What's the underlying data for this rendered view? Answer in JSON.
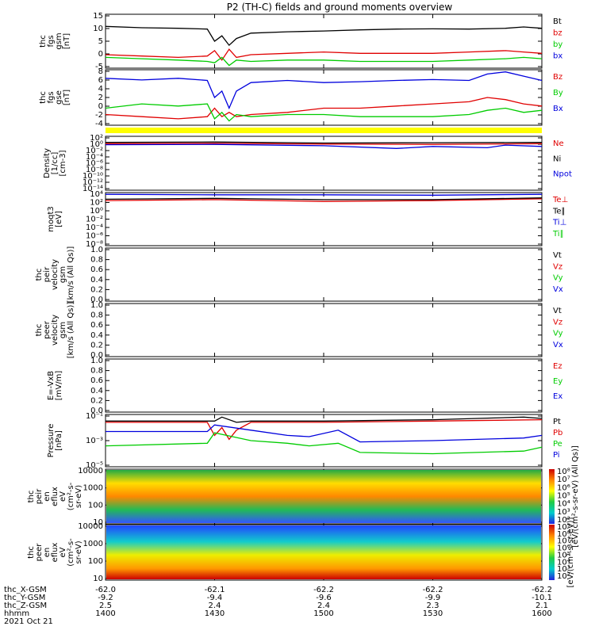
{
  "title": "P2 (TH-C) fields and ground moments overview",
  "colors": {
    "black": "#000000",
    "red": "#e00000",
    "green": "#00cc00",
    "blue": "#0000dd",
    "yellow": "#ffff00"
  },
  "chart_data": [
    {
      "id": "fgs_gsm",
      "type": "line",
      "ylabel": [
        "thc",
        "fgs",
        "gsm",
        "[nT]"
      ],
      "ylim": [
        -5,
        15
      ],
      "yticks": [
        "15",
        "10",
        "5",
        "0",
        "-5"
      ],
      "legend": [
        "Bt",
        "bz",
        "by",
        "bx"
      ],
      "legend_colors": [
        "black",
        "red",
        "green",
        "blue"
      ],
      "series": [
        {
          "name": "Bt",
          "color": "black",
          "x": [
            1400,
            1410,
            1420,
            1428,
            1430,
            1432,
            1434,
            1436,
            1440,
            1450,
            1500,
            1510,
            1520,
            1530,
            1540,
            1550,
            1555,
            1600
          ],
          "y": [
            10.5,
            10,
            9.8,
            9.5,
            5,
            7,
            3.5,
            6,
            8,
            8.5,
            8.8,
            9.2,
            9.5,
            9.6,
            9.5,
            9.8,
            10.3,
            9.8
          ]
        },
        {
          "name": "bz",
          "color": "red",
          "x": [
            1400,
            1410,
            1420,
            1428,
            1430,
            1432,
            1434,
            1436,
            1440,
            1450,
            1500,
            1510,
            1520,
            1530,
            1540,
            1550,
            1555,
            1600
          ],
          "y": [
            0,
            -0.5,
            -1,
            -0.5,
            1.5,
            -2,
            2,
            -1,
            0,
            0.5,
            1,
            0.5,
            0.5,
            0.5,
            1,
            1.5,
            1,
            0.5
          ]
        },
        {
          "name": "by",
          "color": "green",
          "x": [
            1400,
            1410,
            1420,
            1428,
            1430,
            1432,
            1434,
            1436,
            1440,
            1450,
            1500,
            1510,
            1520,
            1530,
            1540,
            1550,
            1555,
            1600
          ],
          "y": [
            -1,
            -1.5,
            -2,
            -2.5,
            -3,
            -1,
            -4,
            -2,
            -2.5,
            -2,
            -2,
            -2.5,
            -2.5,
            -2.5,
            -2,
            -1.5,
            -1,
            -1.5
          ]
        }
      ]
    },
    {
      "id": "fgs_gse",
      "type": "line",
      "ylabel": [
        "thc",
        "fgs",
        "gse",
        "[nT]"
      ],
      "ylim": [
        -5,
        8
      ],
      "yticks": [
        "8",
        "6",
        "4",
        "2",
        "0",
        "-2",
        "-4"
      ],
      "legend": [
        "Bz",
        "By",
        "Bx"
      ],
      "legend_colors": [
        "red",
        "green",
        "blue"
      ],
      "series": [
        {
          "name": "Bz",
          "color": "blue",
          "x": [
            1400,
            1410,
            1420,
            1428,
            1430,
            1432,
            1434,
            1436,
            1440,
            1450,
            1500,
            1510,
            1520,
            1530,
            1540,
            1545,
            1550,
            1555,
            1600
          ],
          "y": [
            6,
            5.6,
            6,
            5.5,
            1.5,
            3,
            -1,
            3,
            5,
            5.5,
            5,
            5.2,
            5.5,
            5.7,
            5.5,
            7,
            7.5,
            6.5,
            5.5
          ]
        },
        {
          "name": "By",
          "color": "red",
          "x": [
            1400,
            1410,
            1420,
            1428,
            1430,
            1432,
            1434,
            1436,
            1440,
            1450,
            1500,
            1510,
            1520,
            1530,
            1540,
            1545,
            1550,
            1555,
            1600
          ],
          "y": [
            -2.5,
            -3,
            -3.5,
            -3,
            -1,
            -3,
            -2,
            -3,
            -2.5,
            -2,
            -1,
            -1,
            -0.5,
            0,
            0.5,
            1.5,
            1,
            0,
            -0.5
          ]
        },
        {
          "name": "Bx",
          "color": "green",
          "x": [
            1400,
            1410,
            1420,
            1428,
            1430,
            1432,
            1434,
            1436,
            1440,
            1450,
            1500,
            1510,
            1520,
            1530,
            1540,
            1545,
            1550,
            1555,
            1600
          ],
          "y": [
            -1,
            0,
            -0.5,
            0,
            -3.5,
            -2,
            -4,
            -2.5,
            -3,
            -2.5,
            -2.5,
            -3,
            -3,
            -3,
            -2.5,
            -1.5,
            -1,
            -2,
            -1.5
          ]
        }
      ]
    },
    {
      "id": "density",
      "type": "line",
      "log": true,
      "ylabel": [
        "Density",
        "[1/cc]",
        "[cm-3]"
      ],
      "ylim_exp": [
        -14,
        2
      ],
      "yticks": [
        "10²",
        "10⁰",
        "10⁻²",
        "10⁻⁴",
        "10⁻⁶",
        "10⁻⁸",
        "10⁻¹⁰",
        "10⁻¹²",
        "10⁻¹⁴"
      ],
      "legend": [
        "Ne",
        "Ni",
        "Npot"
      ],
      "legend_colors": [
        "red",
        "black",
        "blue"
      ],
      "series": [
        {
          "name": "Ni",
          "color": "black",
          "x": [
            1400,
            1430,
            1500,
            1530,
            1600
          ],
          "y_exp": [
            0.2,
            0.3,
            0,
            0.1,
            0.2
          ]
        },
        {
          "name": "Ne",
          "color": "red",
          "x": [
            1400,
            1430,
            1500,
            1530,
            1600
          ],
          "y_exp": [
            -0.2,
            -0.1,
            -0.3,
            -0.4,
            -0.2
          ]
        },
        {
          "name": "Npot",
          "color": "blue",
          "x": [
            1400,
            1430,
            1500,
            1520,
            1530,
            1545,
            1550,
            1600
          ],
          "y_exp": [
            -0.5,
            -0.4,
            -0.8,
            -1.6,
            -1,
            -1.4,
            -0.6,
            -1
          ]
        }
      ]
    },
    {
      "id": "temperature",
      "type": "line",
      "log": true,
      "ylabel": [
        "moqt3",
        "[eV]"
      ],
      "ylim_exp": [
        -8,
        4
      ],
      "yticks": [
        "10⁴",
        "10²",
        "10⁰",
        "10⁻²",
        "10⁻⁴",
        "10⁻⁶",
        "10⁻⁸"
      ],
      "legend": [
        "Te⊥",
        "Te∥",
        "Ti⊥",
        "Ti∥"
      ],
      "legend_colors": [
        "red",
        "black",
        "blue",
        "green"
      ],
      "series": [
        {
          "name": "Ti⊥",
          "color": "blue",
          "x": [
            1400,
            1430,
            1500,
            1530,
            1600
          ],
          "y_exp": [
            3.6,
            3.5,
            3.5,
            3.4,
            3.6
          ]
        },
        {
          "name": "Te⊥",
          "color": "red",
          "x": [
            1400,
            1430,
            1500,
            1530,
            1600
          ],
          "y_exp": [
            2.2,
            2.4,
            2,
            2.2,
            2.6
          ]
        },
        {
          "name": "Te∥",
          "color": "black",
          "x": [
            1400,
            1430,
            1500,
            1530,
            1600
          ],
          "y_exp": [
            2.5,
            2.7,
            2.4,
            2.4,
            2.8
          ]
        }
      ]
    },
    {
      "id": "peir_velocity",
      "type": "line",
      "ylabel": [
        "thc",
        "peir",
        "velocity",
        "gsm",
        "[km/s (All Qs)]"
      ],
      "ylim": [
        0,
        1
      ],
      "yticks": [
        "1.0",
        "0.8",
        "0.6",
        "0.4",
        "0.2",
        "0.0"
      ],
      "legend": [
        "Vt",
        "Vz",
        "Vy",
        "Vx"
      ],
      "legend_colors": [
        "black",
        "red",
        "green",
        "blue"
      ],
      "series": []
    },
    {
      "id": "peer_velocity",
      "type": "line",
      "ylabel": [
        "thc",
        "peer",
        "velocity",
        "gsm",
        "[km/s (All Qs)]"
      ],
      "ylim": [
        0,
        1
      ],
      "yticks": [
        "1.0",
        "0.8",
        "0.6",
        "0.4",
        "0.2",
        "0.0"
      ],
      "legend": [
        "Vt",
        "Vz",
        "Vy",
        "Vx"
      ],
      "legend_colors": [
        "black",
        "red",
        "green",
        "blue"
      ],
      "series": []
    },
    {
      "id": "efield",
      "type": "line",
      "ylabel": [
        "E=-VxB",
        "[mV/m]"
      ],
      "ylim": [
        0,
        1
      ],
      "yticks": [
        "1.0",
        "0.8",
        "0.6",
        "0.4",
        "0.2",
        "0.0"
      ],
      "legend": [
        "Ez",
        "Ey",
        "Ex"
      ],
      "legend_colors": [
        "red",
        "green",
        "blue"
      ],
      "series": []
    },
    {
      "id": "pressure",
      "type": "line",
      "log": true,
      "ylabel": [
        "Pressure",
        "[nPa]"
      ],
      "ylim_exp": [
        -5,
        -1
      ],
      "yticks": [
        "10⁻¹",
        "10⁻³",
        "10⁻⁵"
      ],
      "legend": [
        "Pt",
        "Pb",
        "Pe",
        "Pi"
      ],
      "legend_colors": [
        "black",
        "red",
        "green",
        "blue"
      ],
      "series": [
        {
          "name": "Pt",
          "color": "black",
          "x": [
            1400,
            1430,
            1432,
            1436,
            1440,
            1500,
            1530,
            1555,
            1600
          ],
          "y_exp": [
            -1.5,
            -1.5,
            -1.2,
            -1.6,
            -1.5,
            -1.5,
            -1.4,
            -1.2,
            -1.3
          ]
        },
        {
          "name": "Pb",
          "color": "red",
          "x": [
            1400,
            1428,
            1430,
            1432,
            1434,
            1436,
            1440,
            1500,
            1530,
            1600
          ],
          "y_exp": [
            -1.6,
            -1.6,
            -2.6,
            -2,
            -2.9,
            -2.2,
            -1.6,
            -1.6,
            -1.5,
            -1.4
          ]
        },
        {
          "name": "Pi",
          "color": "blue",
          "x": [
            1400,
            1428,
            1430,
            1440,
            1450,
            1456,
            1504,
            1510,
            1530,
            1555,
            1600
          ],
          "y_exp": [
            -2.3,
            -2.3,
            -1.8,
            -2.2,
            -2.6,
            -2.7,
            -2.2,
            -3.1,
            -3,
            -2.8,
            -2.6
          ]
        },
        {
          "name": "Pe",
          "color": "green",
          "x": [
            1400,
            1428,
            1430,
            1440,
            1450,
            1456,
            1504,
            1510,
            1530,
            1555,
            1600
          ],
          "y_exp": [
            -3.4,
            -3.2,
            -2.4,
            -3,
            -3.2,
            -3.4,
            -3.2,
            -3.9,
            -4,
            -3.8,
            -3.5
          ]
        }
      ]
    },
    {
      "id": "peir_spectrogram",
      "type": "heatmap",
      "ylabel": [
        "thc",
        "peir",
        "en",
        "eflux",
        "eV",
        "(cm²-s-",
        "sr-eV)"
      ],
      "yticks": [
        "10000",
        "1000",
        "100",
        "10"
      ],
      "colorbar_ticks": [
        "10⁸",
        "10⁷",
        "10⁶",
        "10⁵",
        "10⁴",
        "10³",
        "10²"
      ],
      "colorbar_label": "[eV/(cm²-s-sr-eV) (All Qs)]"
    },
    {
      "id": "peer_spectrogram",
      "type": "heatmap",
      "ylabel": [
        "thc",
        "peer",
        "en",
        "eflux",
        "eV",
        "(cm²-s-",
        "sr-eV)"
      ],
      "yticks": [
        "10000",
        "1000",
        "100",
        "10"
      ],
      "colorbar_ticks": [
        "10⁹",
        "10⁸",
        "10⁷",
        "10⁶",
        "10⁵",
        "10⁴",
        "10³",
        "10²"
      ],
      "colorbar_label": "[eV/(cm²-s-sr-eV)]"
    }
  ],
  "footer": {
    "labels": [
      "thc_X-GSM",
      "thc_Y-GSM",
      "thc_Z-GSM",
      "hhmm",
      "2021 Oct 21"
    ],
    "x_gsm": [
      "-62.0",
      "-62.1",
      "-62.2",
      "-62.2",
      "-62.2"
    ],
    "y_gsm": [
      "-9.2",
      "-9.4",
      "-9.6",
      "-9.9",
      "-10.1"
    ],
    "z_gsm": [
      "2.5",
      "2.4",
      "2.4",
      "2.3",
      "2.1"
    ],
    "hhmm": [
      "1400",
      "1430",
      "1500",
      "1530",
      "1600"
    ]
  }
}
